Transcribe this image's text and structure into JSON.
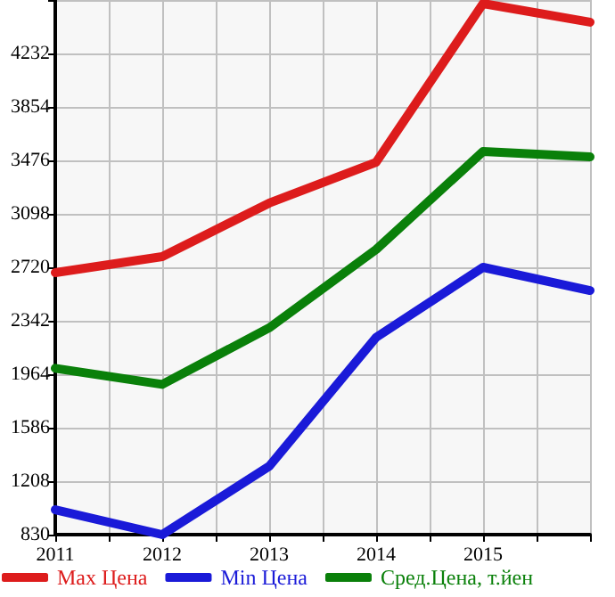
{
  "chart_data": {
    "type": "line",
    "x": [
      2011,
      2012,
      2013,
      2014,
      2015,
      2016
    ],
    "series": [
      {
        "name": "Max Цена",
        "color": "#dd1c1c",
        "values": [
          2682,
          2796,
          3174,
          3463,
          4585,
          4453
        ]
      },
      {
        "name": "Min Цена",
        "color": "#1a1ad8",
        "values": [
          1006,
          830,
          1313,
          2225,
          2720,
          2556
        ]
      },
      {
        "name": "Сред.Цена, т.йен",
        "color": "#0a800a",
        "values": [
          2006,
          1892,
          2292,
          2846,
          3539,
          3501
        ]
      }
    ],
    "xlim": [
      2011,
      2016
    ],
    "xticks": [
      2011,
      {
        "value": 2011.5,
        "label": null
      },
      2012,
      {
        "value": 2012.5,
        "label": null
      },
      2013,
      {
        "value": 2013.5,
        "label": null
      },
      2014,
      {
        "value": 2014.5,
        "label": null
      },
      2015,
      {
        "value": 2015.5,
        "label": null
      },
      {
        "value": 2016,
        "label": null
      }
    ],
    "ylim": [
      830,
      4610
    ],
    "yticks": [
      830,
      1208,
      1586,
      1964,
      2342,
      2720,
      3098,
      3476,
      3854,
      4232,
      {
        "value": 4610,
        "label": null
      }
    ],
    "grid": true,
    "legend": "bottom left",
    "marker": "none",
    "line_style": "solid"
  }
}
